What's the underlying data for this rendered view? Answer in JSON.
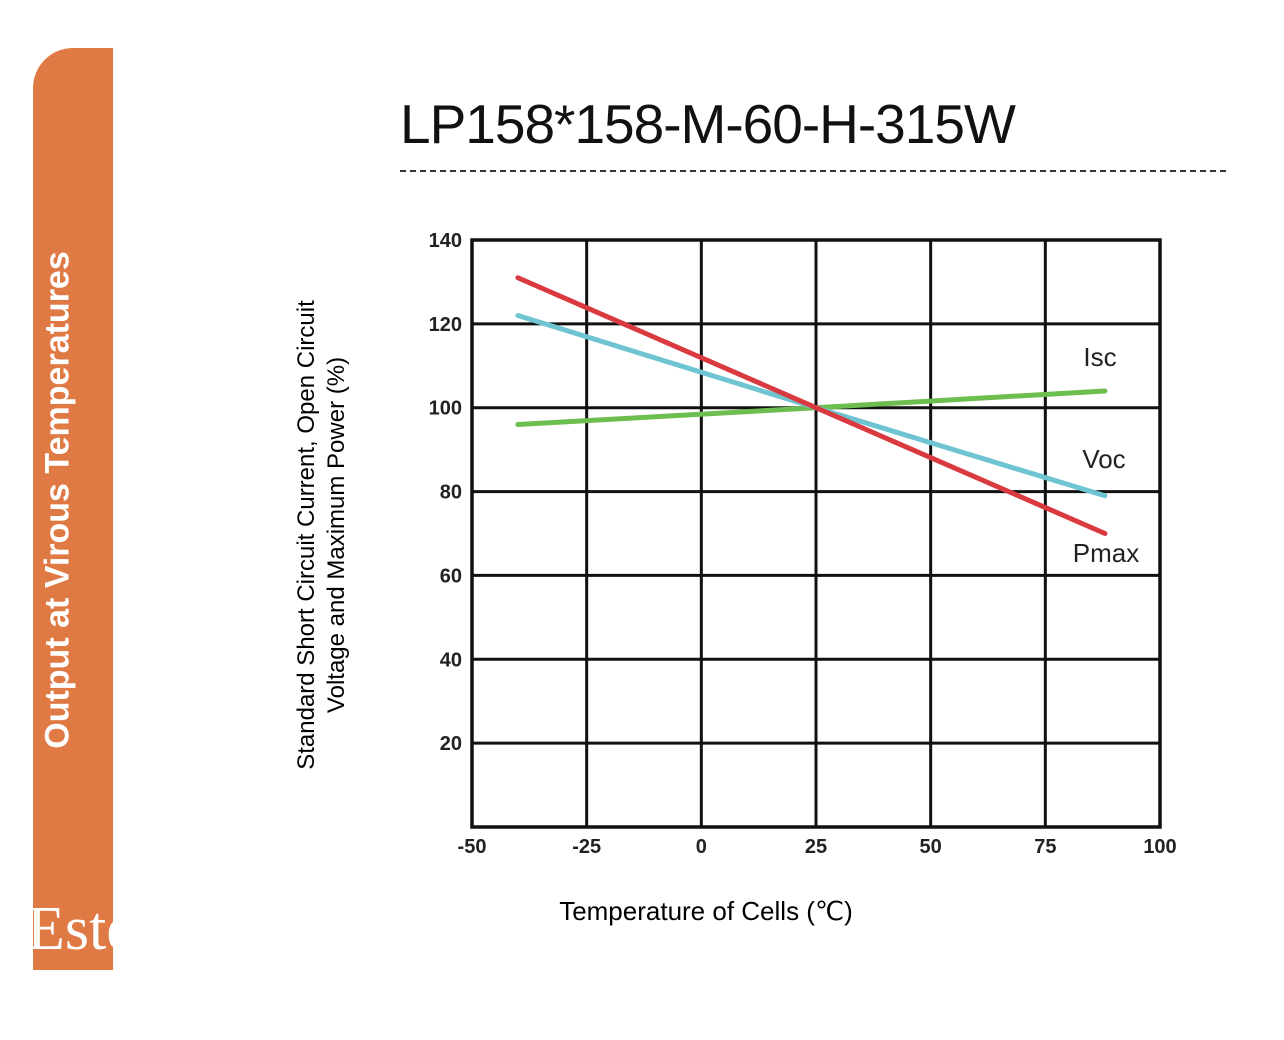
{
  "sidebar": {
    "tab_text": "Output at Virous Temperatures",
    "brand_text": "Este",
    "accent_color": "#E07A45"
  },
  "page": {
    "title": "LP158*158-M-60-H-315W"
  },
  "chart_data": {
    "type": "line",
    "title": "",
    "xlabel": "Temperature of Cells (℃)",
    "ylabel_lines": [
      "Standard Short Circuit Current, Open Circuit",
      "Voltage and Maximum Power (%)"
    ],
    "xlim": [
      -50,
      100
    ],
    "ylim": [
      0,
      140
    ],
    "xticks": [
      -50,
      -25,
      0,
      25,
      50,
      75,
      100
    ],
    "xtick_labels": [
      "-50",
      "-25",
      "0",
      "25",
      "50",
      "75",
      "100"
    ],
    "yticks": [
      20,
      40,
      60,
      80,
      100,
      120,
      140
    ],
    "ytick_labels": [
      "20",
      "40",
      "60",
      "80",
      "100",
      "120",
      "140"
    ],
    "grid": true,
    "legend": "inline labels at right end of lines",
    "series": [
      {
        "name": "Isc",
        "x": [
          -40,
          25,
          88
        ],
        "y": [
          96,
          100,
          104
        ],
        "color": "#6CBE4F"
      },
      {
        "name": "Voc",
        "x": [
          -40,
          25,
          88
        ],
        "y": [
          122,
          100,
          79
        ],
        "color": "#6EC5D1"
      },
      {
        "name": "Pmax",
        "x": [
          -40,
          25,
          88
        ],
        "y": [
          131,
          100,
          70
        ],
        "color": "#D93A3F"
      }
    ]
  }
}
